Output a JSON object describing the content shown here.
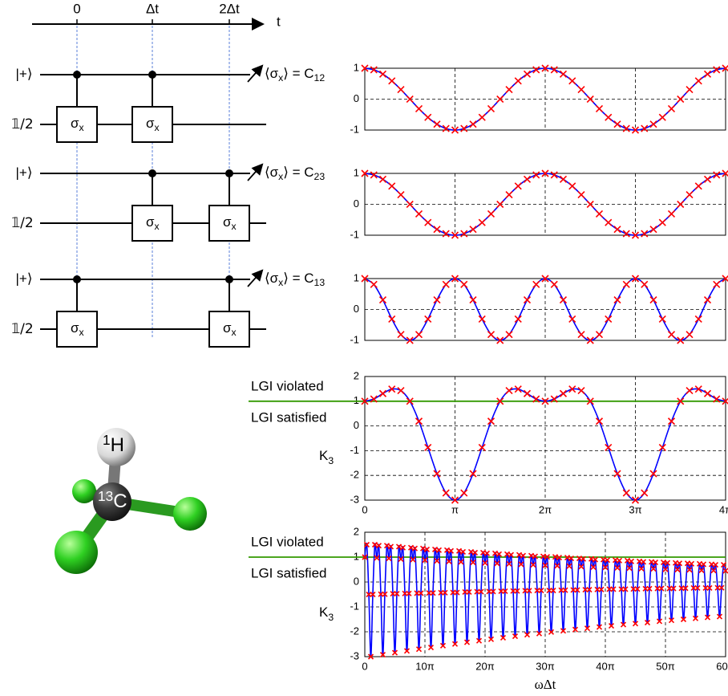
{
  "circuit": {
    "time_ticks": [
      "0",
      "Δt",
      "2Δt"
    ],
    "time_label": "t",
    "gate": "σ",
    "gate_sub": "x",
    "measure_open": "⟨σ",
    "measure_sub": "x",
    "measure_close": "⟩ = C",
    "rows": [
      {
        "control_label": "|+⟩",
        "target_label": "𝟙/2",
        "index": "12"
      },
      {
        "control_label": "|+⟩",
        "target_label": "𝟙/2",
        "index": "23"
      },
      {
        "control_label": "|+⟩",
        "target_label": "𝟙/2",
        "index": "13"
      }
    ]
  },
  "molecule": {
    "h_mass": "1",
    "h": "H",
    "c_mass": "13",
    "c": "C"
  },
  "chart_data": [
    {
      "type": "line",
      "x": [
        0,
        0.1,
        0.2,
        0.3,
        0.4,
        0.5,
        0.6,
        0.7,
        0.8,
        0.9,
        1,
        1.1,
        1.2,
        1.3,
        1.4,
        1.5,
        1.6,
        1.7,
        1.8,
        1.9,
        2,
        2.1,
        2.2,
        2.3,
        2.4,
        2.5,
        2.6,
        2.7,
        2.8,
        2.9,
        3,
        3.1,
        3.2,
        3.3,
        3.4,
        3.5,
        3.6,
        3.7,
        3.8,
        3.9,
        4
      ],
      "series": [
        {
          "color": "#0000ff",
          "marker_color": "#ff0000",
          "values": [
            1,
            0.95,
            0.81,
            0.59,
            0.31,
            0,
            -0.31,
            -0.59,
            -0.81,
            -0.95,
            -1,
            -0.95,
            -0.81,
            -0.59,
            -0.31,
            0,
            0.31,
            0.59,
            0.81,
            0.95,
            1,
            0.95,
            0.81,
            0.59,
            0.31,
            0,
            -0.31,
            -0.59,
            -0.81,
            -0.95,
            -1,
            -0.95,
            -0.81,
            -0.59,
            -0.31,
            0,
            0.31,
            0.59,
            0.81,
            0.95,
            1
          ]
        }
      ],
      "xlim": [
        0,
        4
      ],
      "xticks": [
        0,
        1,
        2,
        3,
        4
      ],
      "xtick_labels": false,
      "ylim": [
        -1,
        1
      ],
      "yticks": [
        -1,
        0,
        1
      ],
      "grid": true
    },
    {
      "type": "line",
      "x": [
        0,
        0.1,
        0.2,
        0.3,
        0.4,
        0.5,
        0.6,
        0.7,
        0.8,
        0.9,
        1,
        1.1,
        1.2,
        1.3,
        1.4,
        1.5,
        1.6,
        1.7,
        1.8,
        1.9,
        2,
        2.1,
        2.2,
        2.3,
        2.4,
        2.5,
        2.6,
        2.7,
        2.8,
        2.9,
        3,
        3.1,
        3.2,
        3.3,
        3.4,
        3.5,
        3.6,
        3.7,
        3.8,
        3.9,
        4
      ],
      "series": [
        {
          "color": "#0000ff",
          "marker_color": "#ff0000",
          "values": [
            1,
            0.95,
            0.81,
            0.59,
            0.31,
            0,
            -0.31,
            -0.59,
            -0.81,
            -0.95,
            -1,
            -0.95,
            -0.81,
            -0.59,
            -0.31,
            0,
            0.31,
            0.59,
            0.81,
            0.95,
            1,
            0.95,
            0.81,
            0.59,
            0.31,
            0,
            -0.31,
            -0.59,
            -0.81,
            -0.95,
            -1,
            -0.95,
            -0.81,
            -0.59,
            -0.31,
            0,
            0.31,
            0.59,
            0.81,
            0.95,
            1
          ]
        }
      ],
      "xlim": [
        0,
        4
      ],
      "xticks": [
        0,
        1,
        2,
        3,
        4
      ],
      "xtick_labels": false,
      "ylim": [
        -1,
        1
      ],
      "yticks": [
        -1,
        0,
        1
      ],
      "grid": true
    },
    {
      "type": "line",
      "x": [
        0,
        0.1,
        0.2,
        0.3,
        0.4,
        0.5,
        0.6,
        0.7,
        0.8,
        0.9,
        1,
        1.1,
        1.2,
        1.3,
        1.4,
        1.5,
        1.6,
        1.7,
        1.8,
        1.9,
        2,
        2.1,
        2.2,
        2.3,
        2.4,
        2.5,
        2.6,
        2.7,
        2.8,
        2.9,
        3,
        3.1,
        3.2,
        3.3,
        3.4,
        3.5,
        3.6,
        3.7,
        3.8,
        3.9,
        4
      ],
      "series": [
        {
          "color": "#0000ff",
          "marker_color": "#ff0000",
          "values": [
            1,
            0.81,
            0.31,
            -0.31,
            -0.81,
            -1,
            -0.81,
            -0.31,
            0.31,
            0.81,
            1,
            0.81,
            0.31,
            -0.31,
            -0.81,
            -1,
            -0.81,
            -0.31,
            0.31,
            0.81,
            1,
            0.81,
            0.31,
            -0.31,
            -0.81,
            -1,
            -0.81,
            -0.31,
            0.31,
            0.81,
            1,
            0.81,
            0.31,
            -0.31,
            -0.81,
            -1,
            -0.81,
            -0.31,
            0.31,
            0.81,
            1
          ]
        }
      ],
      "xlim": [
        0,
        4
      ],
      "xticks": [
        0,
        1,
        2,
        3,
        4
      ],
      "xtick_labels": false,
      "ylim": [
        -1,
        1
      ],
      "yticks": [
        -1,
        0,
        1
      ],
      "grid": true
    },
    {
      "type": "line",
      "x": [
        0,
        0.1,
        0.2,
        0.3,
        0.4,
        0.5,
        0.6,
        0.7,
        0.8,
        0.9,
        1,
        1.1,
        1.2,
        1.3,
        1.4,
        1.5,
        1.6,
        1.7,
        1.8,
        1.9,
        2,
        2.1,
        2.2,
        2.3,
        2.4,
        2.5,
        2.6,
        2.7,
        2.8,
        2.9,
        3,
        3.1,
        3.2,
        3.3,
        3.4,
        3.5,
        3.6,
        3.7,
        3.8,
        3.9,
        4
      ],
      "series": [
        {
          "color": "#0000ff",
          "marker_color": "#ff0000",
          "values": [
            1,
            1.09,
            1.31,
            1.49,
            1.43,
            1,
            0.19,
            -0.87,
            -1.93,
            -2.71,
            -3,
            -2.71,
            -1.93,
            -0.87,
            0.19,
            1,
            1.43,
            1.49,
            1.31,
            1.09,
            1,
            1.09,
            1.31,
            1.49,
            1.43,
            1,
            0.19,
            -0.87,
            -1.93,
            -2.71,
            -3,
            -2.71,
            -1.93,
            -0.87,
            0.19,
            1,
            1.43,
            1.49,
            1.31,
            1.09,
            1
          ]
        }
      ],
      "xlim": [
        0,
        4
      ],
      "xticks": [
        0,
        {
          "value": 1,
          "label": "π"
        },
        {
          "value": 2,
          "label": "2π"
        },
        {
          "value": 3,
          "label": "3π"
        },
        {
          "value": 4,
          "label": "4π"
        }
      ],
      "xtick_labels": true,
      "ylim": [
        -3,
        2
      ],
      "yticks": [
        -3,
        -2,
        -1,
        0,
        1,
        2
      ],
      "grid": true,
      "threshold": 1,
      "threshold_color": "#339900",
      "violated_label": "LGI violated",
      "satisfied_label": "LGI satisfied",
      "ylabel": "K",
      "ylabel_sub": "3"
    },
    {
      "type": "line",
      "x": [
        0,
        0.33,
        0.67,
        1,
        1.33,
        1.67,
        2,
        2.33,
        2.67,
        3,
        3.33,
        3.67,
        4,
        4.33,
        4.67,
        5,
        5.33,
        5.67,
        6,
        6.33,
        6.67,
        7,
        7.33,
        7.67,
        8,
        8.33,
        8.67,
        9,
        9.33,
        9.67,
        10,
        10.33,
        10.67,
        11,
        11.33,
        11.67,
        12,
        12.33,
        12.67,
        13,
        13.33,
        13.67,
        14,
        14.33,
        14.67,
        15,
        15.33,
        15.67,
        16,
        16.33,
        16.67,
        17,
        17.33,
        17.67,
        18,
        18.33,
        18.67,
        19,
        19.33,
        19.67,
        20,
        20.33,
        20.67,
        21,
        21.33,
        21.67,
        22,
        22.33,
        22.67,
        23,
        23.33,
        23.67,
        24,
        24.33,
        24.67,
        25,
        25.33,
        25.67,
        26,
        26.33,
        26.67,
        27,
        27.33,
        27.67,
        28,
        28.33,
        28.67,
        29,
        29.33,
        29.67,
        30,
        30.33,
        30.67,
        31,
        31.33,
        31.67,
        32,
        32.33,
        32.67,
        33,
        33.33,
        33.67,
        34,
        34.33,
        34.67,
        35,
        35.33,
        35.67,
        36,
        36.33,
        36.67,
        37,
        37.33,
        37.67,
        38,
        38.33,
        38.67,
        39,
        39.33,
        39.67,
        40,
        40.33,
        40.67,
        41,
        41.33,
        41.67,
        42,
        42.33,
        42.67,
        43,
        43.33,
        43.67,
        44,
        44.33,
        44.67,
        45,
        45.33,
        45.67,
        46,
        46.33,
        46.67,
        47,
        47.33,
        47.67,
        48,
        48.33,
        48.67,
        49,
        49.33,
        49.67,
        50,
        50.33,
        50.67,
        51,
        51.33,
        51.67,
        52,
        52.33,
        52.67,
        53,
        53.33,
        53.67,
        54,
        54.33,
        54.67,
        55,
        55.33,
        55.67,
        56,
        56.33,
        56.67,
        57,
        57.33,
        57.67,
        58,
        58.33,
        58.67,
        59,
        59.33,
        59.67,
        60
      ],
      "series": [
        {
          "color": "#0000ff",
          "marker_color": "#ff0000",
          "values": [
            1,
            1.5,
            -0.5,
            -3,
            -0.5,
            1.5,
            0.97,
            1.46,
            -0.49,
            -2.92,
            -0.49,
            1.46,
            0.95,
            1.42,
            -0.47,
            -2.84,
            -0.47,
            1.42,
            0.92,
            1.38,
            -0.46,
            -2.77,
            -0.46,
            1.38,
            0.9,
            1.35,
            -0.45,
            -2.7,
            -0.45,
            1.35,
            0.88,
            1.31,
            -0.44,
            -2.63,
            -0.44,
            1.31,
            0.85,
            1.28,
            -0.43,
            -2.56,
            -0.43,
            1.28,
            0.83,
            1.25,
            -0.42,
            -2.49,
            -0.42,
            1.25,
            0.81,
            1.21,
            -0.4,
            -2.42,
            -0.4,
            1.21,
            0.79,
            1.18,
            -0.39,
            -2.36,
            -0.39,
            1.18,
            0.77,
            1.15,
            -0.38,
            -2.3,
            -0.38,
            1.15,
            0.75,
            1.12,
            -0.37,
            -2.24,
            -0.37,
            1.12,
            0.73,
            1.09,
            -0.36,
            -2.18,
            -0.36,
            1.09,
            0.71,
            1.06,
            -0.35,
            -2.12,
            -0.35,
            1.06,
            0.69,
            1.03,
            -0.34,
            -2.07,
            -0.34,
            1.03,
            0.67,
            1.01,
            -0.34,
            -2.01,
            -0.34,
            1.01,
            0.65,
            0.98,
            -0.33,
            -1.96,
            -0.33,
            0.98,
            0.64,
            0.95,
            -0.32,
            -1.91,
            -0.32,
            0.95,
            0.62,
            0.93,
            -0.31,
            -1.86,
            -0.31,
            0.93,
            0.6,
            0.9,
            -0.3,
            -1.81,
            -0.3,
            0.9,
            0.59,
            0.88,
            -0.29,
            -1.76,
            -0.29,
            0.88,
            0.57,
            0.86,
            -0.29,
            -1.71,
            -0.29,
            0.86,
            0.56,
            0.83,
            -0.28,
            -1.67,
            -0.28,
            0.83,
            0.54,
            0.81,
            -0.27,
            -1.63,
            -0.27,
            0.81,
            0.53,
            0.79,
            -0.26,
            -1.58,
            -0.26,
            0.79,
            0.51,
            0.77,
            -0.26,
            -1.54,
            -0.26,
            0.77,
            0.5,
            0.75,
            -0.25,
            -1.5,
            -0.25,
            0.75,
            0.49,
            0.73,
            -0.24,
            -1.46,
            -0.24,
            0.73,
            0.47,
            0.71,
            -0.24,
            -1.42,
            -0.24,
            0.71,
            0.46,
            0.69,
            -0.23,
            -1.39,
            -0.23,
            0.69,
            0.45
          ]
        }
      ],
      "xlim": [
        0,
        60
      ],
      "xticks": [
        0,
        {
          "value": 10,
          "label": "10π"
        },
        {
          "value": 20,
          "label": "20π"
        },
        {
          "value": 30,
          "label": "30π"
        },
        {
          "value": 40,
          "label": "40π"
        },
        {
          "value": 50,
          "label": "50π"
        },
        {
          "value": 60,
          "label": "60π"
        }
      ],
      "xtick_labels": true,
      "ylim": [
        -3,
        2
      ],
      "yticks": [
        -3,
        -2,
        -1,
        0,
        1,
        2
      ],
      "grid": true,
      "marker_size": 3,
      "threshold": 1,
      "threshold_color": "#339900",
      "violated_label": "LGI violated",
      "satisfied_label": "LGI satisfied",
      "ylabel": "K",
      "ylabel_sub": "3",
      "xlabel": "ωΔt"
    }
  ]
}
